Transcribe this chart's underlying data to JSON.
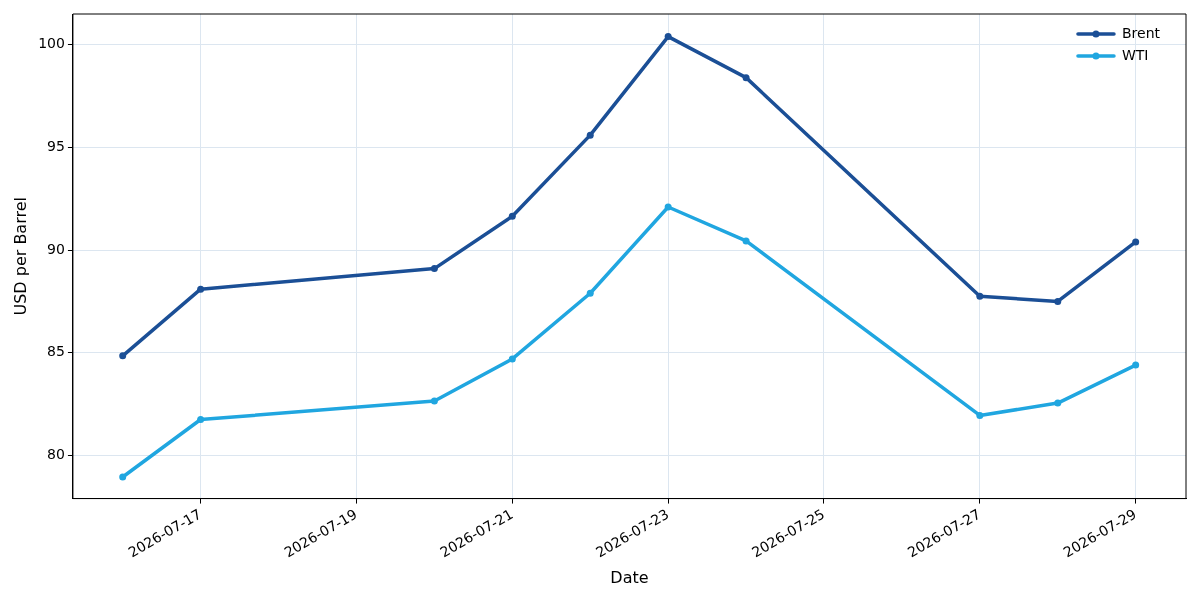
{
  "chart_data": {
    "type": "line",
    "xlabel": "Date",
    "ylabel": "USD per Barrel",
    "x": [
      "2026-07-16",
      "2026-07-17",
      "2026-07-20",
      "2026-07-21",
      "2026-07-22",
      "2026-07-23",
      "2026-07-24",
      "2026-07-27",
      "2026-07-28",
      "2026-07-29"
    ],
    "series": [
      {
        "name": "Brent",
        "color": "#1b4f96",
        "values": [
          84.85,
          88.1,
          89.1,
          91.65,
          95.6,
          100.4,
          98.4,
          87.75,
          87.5,
          90.4
        ]
      },
      {
        "name": "WTI",
        "color": "#20a6e0",
        "values": [
          78.95,
          81.75,
          82.65,
          84.7,
          87.9,
          92.1,
          90.45,
          81.95,
          82.55,
          84.4
        ]
      }
    ],
    "xlim": [
      "2026-07-15T08:40",
      "2026-07-29T15:30"
    ],
    "xticks": [
      "2026-07-17",
      "2026-07-19",
      "2026-07-21",
      "2026-07-23",
      "2026-07-25",
      "2026-07-27",
      "2026-07-29"
    ],
    "ylim": [
      77.9,
      101.5
    ],
    "yticks": [
      80,
      85,
      90,
      95,
      100
    ],
    "grid": true,
    "legend": "top right",
    "marker": "circle",
    "line_style": "solid"
  }
}
